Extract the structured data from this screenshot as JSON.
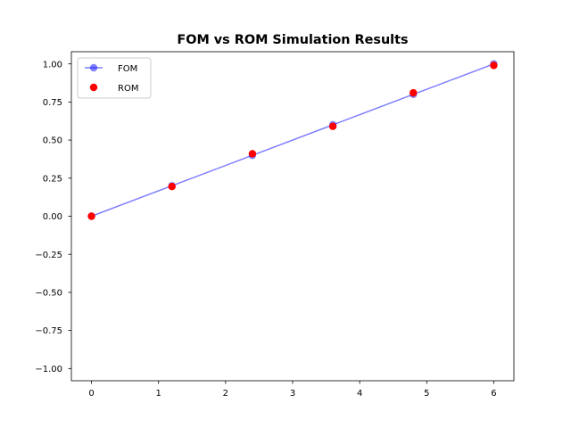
{
  "chart_data": {
    "type": "line",
    "title": "FOM vs ROM Simulation Results",
    "xlabel": "",
    "ylabel": "",
    "xlim": [
      -0.3,
      6.3
    ],
    "ylim": [
      -1.08,
      1.08
    ],
    "x_ticks": [
      0,
      1,
      2,
      3,
      4,
      5,
      6
    ],
    "y_ticks": [
      -1.0,
      -0.75,
      -0.5,
      -0.25,
      0.0,
      0.25,
      0.5,
      0.75,
      1.0
    ],
    "x_tick_labels": [
      "0",
      "1",
      "2",
      "3",
      "4",
      "5",
      "6"
    ],
    "y_tick_labels": [
      "−1.00",
      "−0.75",
      "−0.50",
      "−0.25",
      "0.00",
      "0.25",
      "0.50",
      "0.75",
      "1.00"
    ],
    "grid": false,
    "legend_position": "top-left",
    "series": [
      {
        "name": "FOM",
        "style": "line-with-markers",
        "color": "#0000ff",
        "opacity": 0.5,
        "x": [
          0,
          1.2,
          2.4,
          3.6,
          4.8,
          6.0
        ],
        "y": [
          0.0,
          0.2,
          0.4,
          0.6,
          0.8,
          1.0
        ]
      },
      {
        "name": "ROM",
        "style": "markers",
        "color": "#ff0000",
        "opacity": 1,
        "x": [
          0,
          1.2,
          2.4,
          3.6,
          4.8,
          6.0
        ],
        "y": [
          0.0,
          0.195,
          0.41,
          0.59,
          0.81,
          0.99
        ]
      }
    ]
  }
}
